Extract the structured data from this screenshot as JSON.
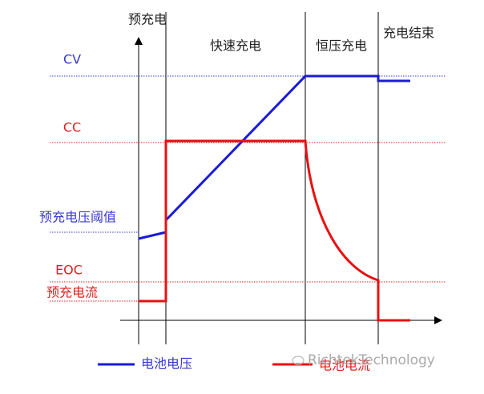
{
  "phases": [
    "预充电",
    "快速充电",
    "恒压充电",
    "充电结束"
  ],
  "levels": {
    "cv": "CV",
    "cc": "CC",
    "precharge_voltage_threshold": "预充电压阈值",
    "eoc": "EOC",
    "precharge_current": "预充电流"
  },
  "legend": [
    "电池电压",
    "电池电流"
  ],
  "watermark": "RichtekTechnology"
}
